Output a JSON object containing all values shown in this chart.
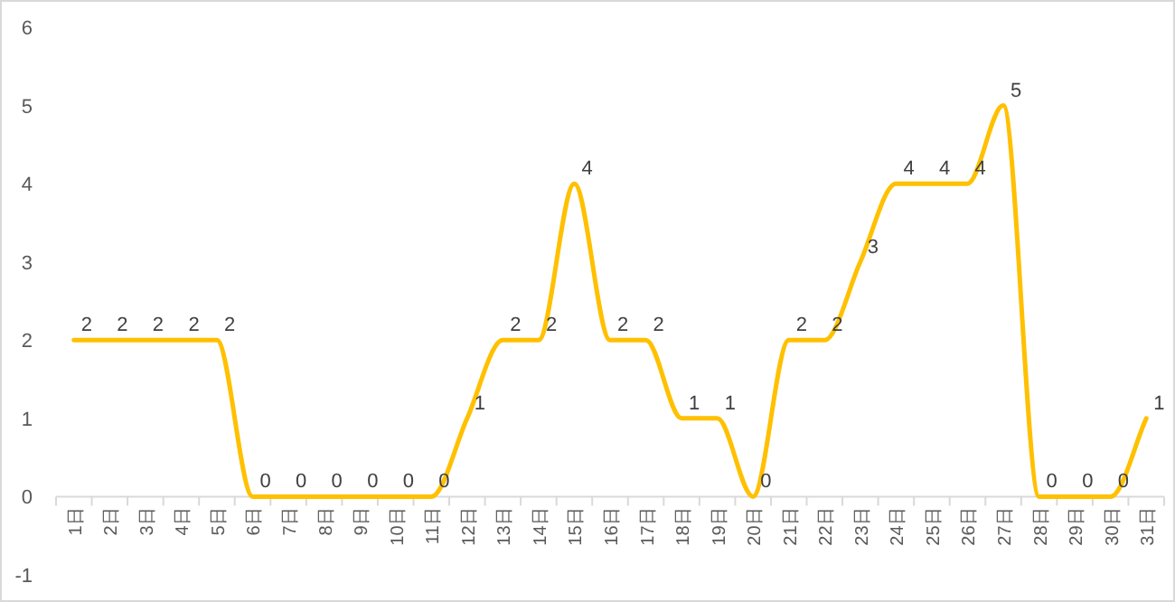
{
  "chart_data": {
    "type": "line",
    "categories": [
      "1日",
      "2日",
      "3日",
      "4日",
      "5日",
      "6日",
      "7日",
      "8日",
      "9日",
      "10日",
      "11日",
      "12日",
      "13日",
      "14日",
      "15日",
      "16日",
      "17日",
      "18日",
      "19日",
      "20日",
      "21日",
      "22日",
      "23日",
      "24日",
      "25日",
      "26日",
      "27日",
      "28日",
      "29日",
      "30日",
      "31日"
    ],
    "series": [
      {
        "color": "#ffc000",
        "values": [
          2,
          2,
          2,
          2,
          2,
          0,
          0,
          0,
          0,
          0,
          0,
          1,
          2,
          2,
          4,
          2,
          2,
          1,
          1,
          0,
          2,
          2,
          3,
          4,
          4,
          4,
          5,
          0,
          0,
          0,
          1
        ]
      }
    ],
    "ylim": [
      -1,
      6
    ],
    "yticks": [
      -1,
      0,
      1,
      2,
      3,
      4,
      5,
      6
    ],
    "data_labels": true,
    "grid": false,
    "marker": "none",
    "line_style": "solid"
  }
}
